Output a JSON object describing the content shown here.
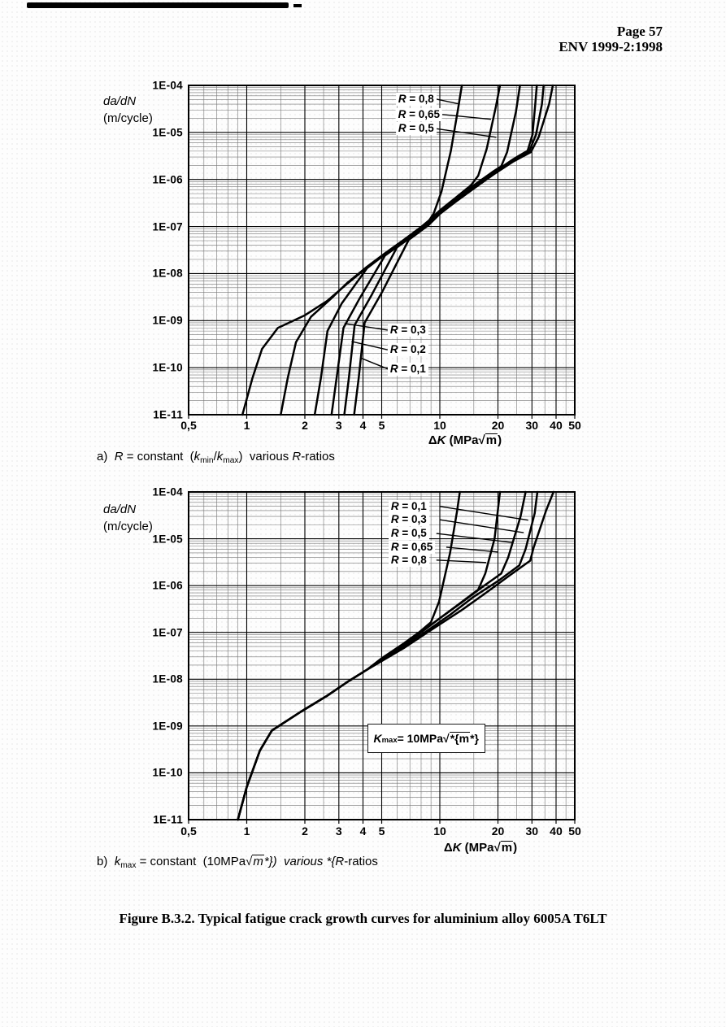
{
  "page": {
    "header_line1": "Page 57",
    "header_line2": "ENV 1999-2:1998",
    "figure_caption": "Figure B.3.2. Typical fatigue crack growth curves for aluminium alloy 6005A T6LT"
  },
  "chart_data": [
    {
      "id": "a",
      "type": "line",
      "log_x": true,
      "log_y": true,
      "caption": "a)  *{R}* = constant  (*{k}*_{min}/*{k}*_{max})  various *{R}*-ratios",
      "x_label": "Δ*{K}* (MPa√{m})",
      "y_label_lines": [
        "*{da/dN}*",
        "(m/cycle)"
      ],
      "xlim": [
        0.5,
        50
      ],
      "ylim": [
        1e-11,
        0.0001
      ],
      "x_ticks": [
        {
          "v": 0.5,
          "label": "0,5"
        },
        {
          "v": 1,
          "label": "1"
        },
        {
          "v": 2,
          "label": "2"
        },
        {
          "v": 3,
          "label": "3"
        },
        {
          "v": 4,
          "label": "4"
        },
        {
          "v": 5,
          "label": "5"
        },
        {
          "v": 10,
          "label": "10"
        },
        {
          "v": 20,
          "label": "20"
        },
        {
          "v": 30,
          "label": "30"
        },
        {
          "v": 40,
          "label": "40"
        },
        {
          "v": 50,
          "label": "50"
        }
      ],
      "y_ticks": [
        {
          "v": 0.0001,
          "label": "1E-04"
        },
        {
          "v": 1e-05,
          "label": "1E-05"
        },
        {
          "v": 1e-06,
          "label": "1E-06"
        },
        {
          "v": 1e-07,
          "label": "1E-07"
        },
        {
          "v": 1e-08,
          "label": "1E-08"
        },
        {
          "v": 1e-09,
          "label": "1E-09"
        },
        {
          "v": 1e-10,
          "label": "1E-10"
        },
        {
          "v": 1e-11,
          "label": "1E-11"
        }
      ],
      "x_minor": [
        0.6,
        0.7,
        0.8,
        0.9,
        1.5,
        2.5,
        6,
        7,
        8,
        9,
        15,
        25,
        35,
        45
      ],
      "curves": [
        {
          "name": "R = 0,8",
          "points": [
            [
              0.95,
              1e-11
            ],
            [
              1.07,
              6e-11
            ],
            [
              1.2,
              2.5e-10
            ],
            [
              1.45,
              7e-10
            ],
            [
              2.0,
              1.3e-09
            ],
            [
              2.6,
              2.6e-09
            ],
            [
              3.3,
              6e-09
            ],
            [
              4.2,
              1.35e-08
            ],
            [
              5.2,
              2.6e-08
            ],
            [
              6.5,
              5e-08
            ],
            [
              8.0,
              9.5e-08
            ],
            [
              8.7,
              1.25e-07
            ],
            [
              9.3,
              1.9e-07
            ],
            [
              10.2,
              5.5e-07
            ],
            [
              11.4,
              4e-06
            ],
            [
              12.4,
              3e-05
            ],
            [
              13.0,
              0.0001
            ]
          ]
        },
        {
          "name": "R = 0,65",
          "points": [
            [
              1.5,
              1e-11
            ],
            [
              1.63,
              6e-11
            ],
            [
              1.8,
              3.5e-10
            ],
            [
              2.15,
              1.2e-09
            ],
            [
              2.75,
              3e-09
            ],
            [
              3.3,
              6.2e-09
            ],
            [
              4.2,
              1.4e-08
            ],
            [
              5.2,
              2.7e-08
            ],
            [
              6.5,
              5.2e-08
            ],
            [
              8.0,
              9.8e-08
            ],
            [
              8.7,
              1.3e-07
            ],
            [
              10,
              2.2e-07
            ],
            [
              12,
              4e-07
            ],
            [
              14.5,
              7.5e-07
            ],
            [
              15.8,
              1.2e-06
            ],
            [
              17.5,
              4.5e-06
            ],
            [
              19.5,
              3.5e-05
            ],
            [
              20.5,
              0.0001
            ]
          ]
        },
        {
          "name": "R = 0,5",
          "points": [
            [
              2.25,
              1e-11
            ],
            [
              2.42,
              6e-11
            ],
            [
              2.62,
              6e-10
            ],
            [
              3.1,
              2.3e-09
            ],
            [
              4.2,
              1.3e-08
            ],
            [
              5.2,
              2.55e-08
            ],
            [
              6.5,
              4.9e-08
            ],
            [
              8.0,
              9.2e-08
            ],
            [
              8.7,
              1.2e-07
            ],
            [
              10,
              2.1e-07
            ],
            [
              12,
              3.8e-07
            ],
            [
              15,
              7.5e-07
            ],
            [
              19,
              1.5e-06
            ],
            [
              20.8,
              1.9e-06
            ],
            [
              22.3,
              3.8e-06
            ],
            [
              24.8,
              2.8e-05
            ],
            [
              26,
              0.0001
            ]
          ]
        },
        {
          "name": "R = 0,3",
          "points": [
            [
              2.75,
              1e-11
            ],
            [
              2.92,
              6e-11
            ],
            [
              3.17,
              7e-10
            ],
            [
              3.85,
              3e-09
            ],
            [
              5.2,
              2.4e-08
            ],
            [
              6.5,
              4.7e-08
            ],
            [
              8.0,
              8.9e-08
            ],
            [
              8.7,
              1.15e-07
            ],
            [
              10,
              2e-07
            ],
            [
              12,
              3.6e-07
            ],
            [
              15,
              7e-07
            ],
            [
              19,
              1.4e-06
            ],
            [
              24,
              2.7e-06
            ],
            [
              28.5,
              4.1e-06
            ],
            [
              30.2,
              9e-06
            ],
            [
              31.2,
              4e-05
            ],
            [
              31.8,
              0.0001
            ]
          ]
        },
        {
          "name": "R = 0,2",
          "points": [
            [
              3.2,
              1e-11
            ],
            [
              3.38,
              6e-11
            ],
            [
              3.62,
              8e-10
            ],
            [
              4.45,
              3.6e-09
            ],
            [
              6.0,
              3.6e-08
            ],
            [
              8.0,
              8.6e-08
            ],
            [
              8.7,
              1.1e-07
            ],
            [
              10,
              1.95e-07
            ],
            [
              12,
              3.45e-07
            ],
            [
              15,
              6.7e-07
            ],
            [
              19,
              1.35e-06
            ],
            [
              24,
              2.55e-06
            ],
            [
              29,
              3.9e-06
            ],
            [
              31.5,
              9e-06
            ],
            [
              33.8,
              4e-05
            ],
            [
              34.5,
              0.0001
            ]
          ]
        },
        {
          "name": "R = 0,1",
          "points": [
            [
              3.6,
              1e-11
            ],
            [
              3.8,
              6e-11
            ],
            [
              4.08,
              9e-10
            ],
            [
              5.05,
              4.2e-09
            ],
            [
              6.9,
              5.2e-08
            ],
            [
              8.7,
              1.05e-07
            ],
            [
              10,
              1.85e-07
            ],
            [
              12,
              3.3e-07
            ],
            [
              15,
              6.4e-07
            ],
            [
              19,
              1.28e-06
            ],
            [
              24,
              2.4e-06
            ],
            [
              29.6,
              3.8e-06
            ],
            [
              32.5,
              8e-06
            ],
            [
              36.8,
              4e-05
            ],
            [
              38.5,
              0.0001
            ]
          ]
        }
      ],
      "labels": [
        {
          "text": "*{R}* = 0,8",
          "align": "right",
          "tx": 9.6,
          "ty": 5.1e-05,
          "ax": 12.7,
          "ay": 4e-05
        },
        {
          "text": "*{R}* = 0,65",
          "align": "right",
          "tx": 10.3,
          "ty": 2.4e-05,
          "ax": 18.4,
          "ay": 1.9e-05
        },
        {
          "text": "*{R}* = 0,5",
          "align": "right",
          "tx": 9.6,
          "ty": 1.2e-05,
          "ax": 19.6,
          "ay": 7.9e-06
        },
        {
          "text": "*{R}* = 0,3",
          "align": "left",
          "tx": 5.37,
          "ty": 6.3e-10,
          "ax": 3.21,
          "ay": 8.7e-10
        },
        {
          "text": "*{R}* = 0,2",
          "align": "left",
          "tx": 5.37,
          "ty": 2.4e-10,
          "ax": 3.49,
          "ay": 3.6e-10
        },
        {
          "text": "*{R}* = 0,1",
          "align": "left",
          "tx": 5.37,
          "ty": 9.4e-11,
          "ax": 3.9,
          "ay": 1.6e-10
        }
      ],
      "annotation": null
    },
    {
      "id": "b",
      "type": "line",
      "log_x": true,
      "log_y": true,
      "caption": "b)  *{k}*_{max} = constant  (10MPa√{*{m}*})  various *{R}*-ratios",
      "x_label": "Δ*{K}* (MPa√{m})",
      "y_label_lines": [
        "*{da/dN}*",
        "(m/cycle)"
      ],
      "xlim": [
        0.5,
        50
      ],
      "ylim": [
        1e-11,
        0.0001
      ],
      "x_ticks": [
        {
          "v": 0.5,
          "label": "0,5"
        },
        {
          "v": 1,
          "label": "1"
        },
        {
          "v": 2,
          "label": "2"
        },
        {
          "v": 3,
          "label": "3"
        },
        {
          "v": 4,
          "label": "4"
        },
        {
          "v": 5,
          "label": "5"
        },
        {
          "v": 10,
          "label": "10"
        },
        {
          "v": 20,
          "label": "20"
        },
        {
          "v": 30,
          "label": "30"
        },
        {
          "v": 40,
          "label": "40"
        },
        {
          "v": 50,
          "label": "50"
        }
      ],
      "y_ticks": [
        {
          "v": 0.0001,
          "label": "1E-04"
        },
        {
          "v": 1e-05,
          "label": "1E-05"
        },
        {
          "v": 1e-06,
          "label": "1E-06"
        },
        {
          "v": 1e-07,
          "label": "1E-07"
        },
        {
          "v": 1e-08,
          "label": "1E-08"
        },
        {
          "v": 1e-09,
          "label": "1E-09"
        },
        {
          "v": 1e-10,
          "label": "1E-10"
        },
        {
          "v": 1e-11,
          "label": "1E-11"
        }
      ],
      "x_minor": [
        0.6,
        0.7,
        0.8,
        0.9,
        1.5,
        2.5,
        6,
        7,
        8,
        9,
        15,
        25,
        35,
        45
      ],
      "curves": [
        {
          "name": "R = 0,8",
          "points": [
            [
              0.9,
              1e-11
            ],
            [
              1.0,
              5e-11
            ],
            [
              1.17,
              3e-10
            ],
            [
              1.35,
              8e-10
            ],
            [
              1.9,
              2e-09
            ],
            [
              2.6,
              4.4e-09
            ],
            [
              3.3,
              8.6e-09
            ],
            [
              4.2,
              1.6e-08
            ],
            [
              5.0,
              2.8e-08
            ],
            [
              6.3,
              5.3e-08
            ],
            [
              7.8,
              1e-07
            ],
            [
              9.0,
              1.65e-07
            ],
            [
              9.9,
              4.5e-07
            ],
            [
              11.3,
              5e-06
            ],
            [
              12.3,
              4e-05
            ],
            [
              12.7,
              0.0001
            ]
          ]
        },
        {
          "name": "R = 0,65",
          "points": [
            [
              0.9,
              1e-11
            ],
            [
              1.0,
              5e-11
            ],
            [
              1.17,
              3e-10
            ],
            [
              1.35,
              8e-10
            ],
            [
              1.9,
              2e-09
            ],
            [
              2.6,
              4.4e-09
            ],
            [
              3.3,
              8.6e-09
            ],
            [
              4.2,
              1.6e-08
            ],
            [
              5.2,
              3e-08
            ],
            [
              7.0,
              7e-08
            ],
            [
              9.0,
              1.45e-07
            ],
            [
              12,
              3.5e-07
            ],
            [
              15.8,
              8.2e-07
            ],
            [
              17.2,
              1.8e-06
            ],
            [
              19.2,
              1e-05
            ],
            [
              20.5,
              0.0001
            ]
          ]
        },
        {
          "name": "R = 0,5",
          "points": [
            [
              0.9,
              1e-11
            ],
            [
              1.0,
              5e-11
            ],
            [
              1.17,
              3e-10
            ],
            [
              1.35,
              8e-10
            ],
            [
              1.9,
              2e-09
            ],
            [
              2.6,
              4.4e-09
            ],
            [
              3.3,
              8.6e-09
            ],
            [
              4.2,
              1.6e-08
            ],
            [
              5.5,
              3.3e-08
            ],
            [
              7.5,
              8.2e-08
            ],
            [
              10,
              2e-07
            ],
            [
              13,
              4.4e-07
            ],
            [
              17,
              1e-06
            ],
            [
              20.8,
              1.8e-06
            ],
            [
              22.6,
              4e-06
            ],
            [
              26.2,
              3e-05
            ],
            [
              27.8,
              0.0001
            ]
          ]
        },
        {
          "name": "R = 0,3",
          "points": [
            [
              0.9,
              1e-11
            ],
            [
              1.0,
              5e-11
            ],
            [
              1.17,
              3e-10
            ],
            [
              1.35,
              8e-10
            ],
            [
              1.9,
              2e-09
            ],
            [
              2.6,
              4.4e-09
            ],
            [
              3.3,
              8.6e-09
            ],
            [
              4.2,
              1.6e-08
            ],
            [
              6.0,
              3.9e-08
            ],
            [
              8.5,
              1.05e-07
            ],
            [
              11.5,
              2.5e-07
            ],
            [
              15,
              5.8e-07
            ],
            [
              20,
              1.25e-06
            ],
            [
              25.8,
              2.7e-06
            ],
            [
              27.8,
              6e-06
            ],
            [
              31,
              3.5e-05
            ],
            [
              32,
              0.0001
            ]
          ]
        },
        {
          "name": "R = 0,1",
          "points": [
            [
              0.9,
              1e-11
            ],
            [
              1.0,
              5e-11
            ],
            [
              1.17,
              3e-10
            ],
            [
              1.35,
              8e-10
            ],
            [
              1.9,
              2e-09
            ],
            [
              2.6,
              4.4e-09
            ],
            [
              3.3,
              8.6e-09
            ],
            [
              4.2,
              1.6e-08
            ],
            [
              6.5,
              4.6e-08
            ],
            [
              9.5,
              1.3e-07
            ],
            [
              13,
              3e-07
            ],
            [
              17.5,
              7.2e-07
            ],
            [
              23,
              1.65e-06
            ],
            [
              29.4,
              3.4e-06
            ],
            [
              30.6,
              6.5e-06
            ],
            [
              35.5,
              4e-05
            ],
            [
              38.8,
              0.0001
            ]
          ]
        }
      ],
      "labels": [
        {
          "text": "*{R}* = 0,1",
          "align": "left",
          "tx": 5.42,
          "ty": 4.9e-05,
          "lx": 10.0,
          "ax": 28.7,
          "ay": 2.5e-05
        },
        {
          "text": "*{R}* = 0,3",
          "align": "left",
          "tx": 5.42,
          "ty": 2.55e-05,
          "lx": 10.0,
          "ax": 27.2,
          "ay": 1.35e-05
        },
        {
          "text": "*{R}* = 0,5",
          "align": "left",
          "tx": 5.42,
          "ty": 1.3e-05,
          "lx": 9.6,
          "ax": 23.7,
          "ay": 8.3e-06
        },
        {
          "text": "*{R}* = 0,65",
          "align": "left",
          "tx": 5.42,
          "ty": 6.6e-06,
          "lx": 10.8,
          "ax": 20.1,
          "ay": 5.2e-06
        },
        {
          "text": "*{R}* = 0,8",
          "align": "left",
          "tx": 5.42,
          "ty": 3.5e-06,
          "lx": 9.6,
          "ax": 17.4,
          "ay": 3.1e-06
        }
      ],
      "annotation": {
        "text": "*{K}*_{max} = 10MPa√{*{m}*}",
        "x1": 4.2,
        "x2": 17.2,
        "cy": 5.5e-10
      }
    }
  ]
}
